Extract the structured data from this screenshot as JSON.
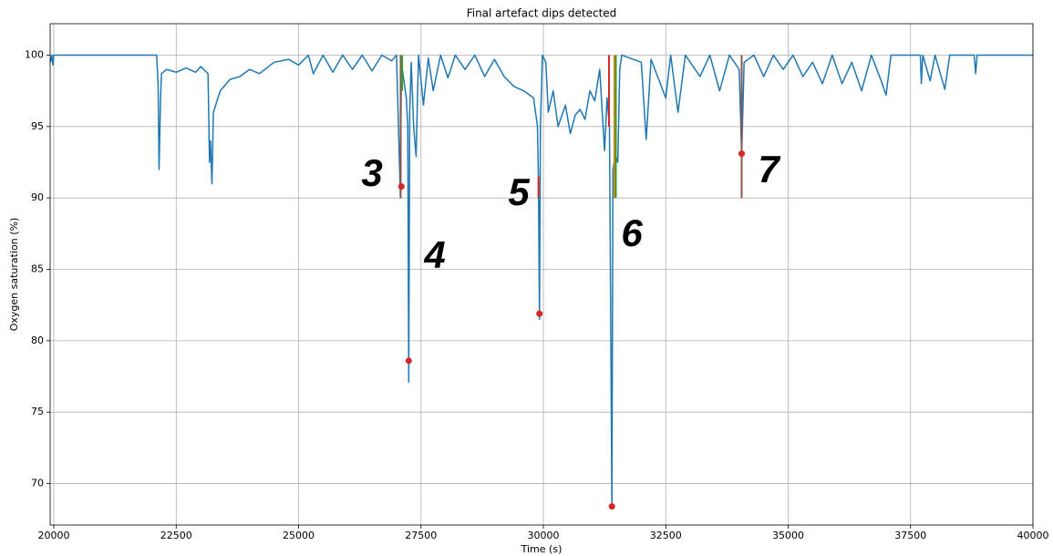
{
  "chart_data": {
    "type": "line",
    "title": "Final artefact dips detected",
    "xlabel": "Time (s)",
    "ylabel": "Oxygen saturation (%)",
    "xlim": [
      19925,
      40000
    ],
    "ylim": [
      67.1,
      102.2
    ],
    "xticks": [
      20000,
      22500,
      25000,
      27500,
      30000,
      32500,
      35000,
      37500,
      40000
    ],
    "yticks": [
      70,
      75,
      80,
      85,
      90,
      95,
      100
    ],
    "grid": true,
    "series": [
      {
        "name": "Oxygen saturation",
        "color": "#1f77b4",
        "x": [
          19930,
          19960,
          19980,
          20000,
          22100,
          22130,
          22150,
          22180,
          22200,
          22300,
          22500,
          22700,
          22900,
          23000,
          23150,
          23180,
          23200,
          23230,
          23260,
          23400,
          23600,
          23800,
          24000,
          24200,
          24500,
          24800,
          25000,
          25200,
          25300,
          25500,
          25700,
          25900,
          26100,
          26300,
          26500,
          26700,
          26900,
          27000,
          27080,
          27100,
          27200,
          27230,
          27250,
          27270,
          27300,
          27350,
          27400,
          27450,
          27550,
          27650,
          27750,
          27900,
          28050,
          28200,
          28400,
          28600,
          28800,
          29000,
          29200,
          29400,
          29600,
          29800,
          29880,
          29900,
          29920,
          29940,
          29980,
          30050,
          30100,
          30200,
          30300,
          30450,
          30550,
          30650,
          30750,
          30850,
          30950,
          31050,
          31150,
          31250,
          31300,
          31350,
          31400,
          31420,
          31470,
          31520,
          31560,
          31600,
          32000,
          32100,
          32200,
          32500,
          32600,
          32750,
          32900,
          33200,
          33400,
          33600,
          33800,
          34000,
          34050,
          34100,
          34300,
          34500,
          34700,
          34900,
          35100,
          35300,
          35500,
          35700,
          35900,
          36100,
          36300,
          36500,
          36700,
          36900,
          37000,
          37100,
          37500,
          37700,
          37720,
          37750,
          37900,
          38000,
          38200,
          38300,
          38800,
          38830,
          38860,
          40000
        ],
        "values": [
          99.5,
          100,
          99.3,
          100,
          100,
          98,
          92,
          97,
          98.7,
          99,
          98.8,
          99.1,
          98.8,
          99.2,
          98.7,
          92.5,
          94,
          91,
          96,
          97.5,
          98.3,
          98.5,
          99,
          98.7,
          99.5,
          99.7,
          99.3,
          100,
          98.7,
          100,
          98.8,
          100,
          99,
          100,
          98.9,
          100,
          99.6,
          100,
          90,
          99.5,
          97,
          95,
          77.1,
          96,
          99.5,
          95,
          92.9,
          100,
          96.5,
          99.8,
          97.5,
          100,
          98.4,
          100,
          99,
          100,
          98.5,
          99.7,
          98.5,
          97.8,
          97.5,
          97,
          95,
          91,
          81.5,
          95,
          100,
          99.5,
          96,
          97.5,
          95,
          96.5,
          94.5,
          95.8,
          96.2,
          95.5,
          97.5,
          96.8,
          99,
          93.3,
          97,
          95,
          68.4,
          92,
          93,
          92.5,
          99,
          100,
          99.5,
          94.1,
          99.7,
          97,
          100,
          96,
          100,
          98.5,
          100,
          97.5,
          100,
          99,
          93,
          99.5,
          100,
          98.5,
          100,
          99,
          100,
          98.5,
          99.5,
          98,
          100,
          98,
          99.5,
          97.5,
          100,
          98.2,
          97.2,
          100,
          100,
          100,
          98,
          100,
          98.2,
          100,
          97.6,
          100,
          100,
          98.7,
          100,
          100
        ]
      }
    ],
    "markers": [
      {
        "x": 27085,
        "y0": 90,
        "y1": 100,
        "color": "#8c564b"
      },
      {
        "x": 27115,
        "y0": 97.5,
        "y1": 100,
        "color": "#2ca02c"
      },
      {
        "x": 29900,
        "y0": 90,
        "y1": 91.5,
        "color": "#d62728"
      },
      {
        "x": 31340,
        "y0": 95,
        "y1": 100,
        "color": "#d62728"
      },
      {
        "x": 31450,
        "y0": 90,
        "y1": 100,
        "color": "#ff7f0e"
      },
      {
        "x": 31480,
        "y0": 90,
        "y1": 100,
        "color": "#2ca02c"
      },
      {
        "x": 34050,
        "y0": 90,
        "y1": 100,
        "color": "#8c564b"
      }
    ],
    "dips": {
      "color": "#d62728",
      "x": [
        27100,
        27250,
        29920,
        31400,
        34050
      ],
      "values": [
        90.8,
        78.6,
        81.9,
        68.4,
        93.1
      ]
    },
    "annotations": [
      "3",
      "4",
      "5",
      "6",
      "7"
    ]
  }
}
